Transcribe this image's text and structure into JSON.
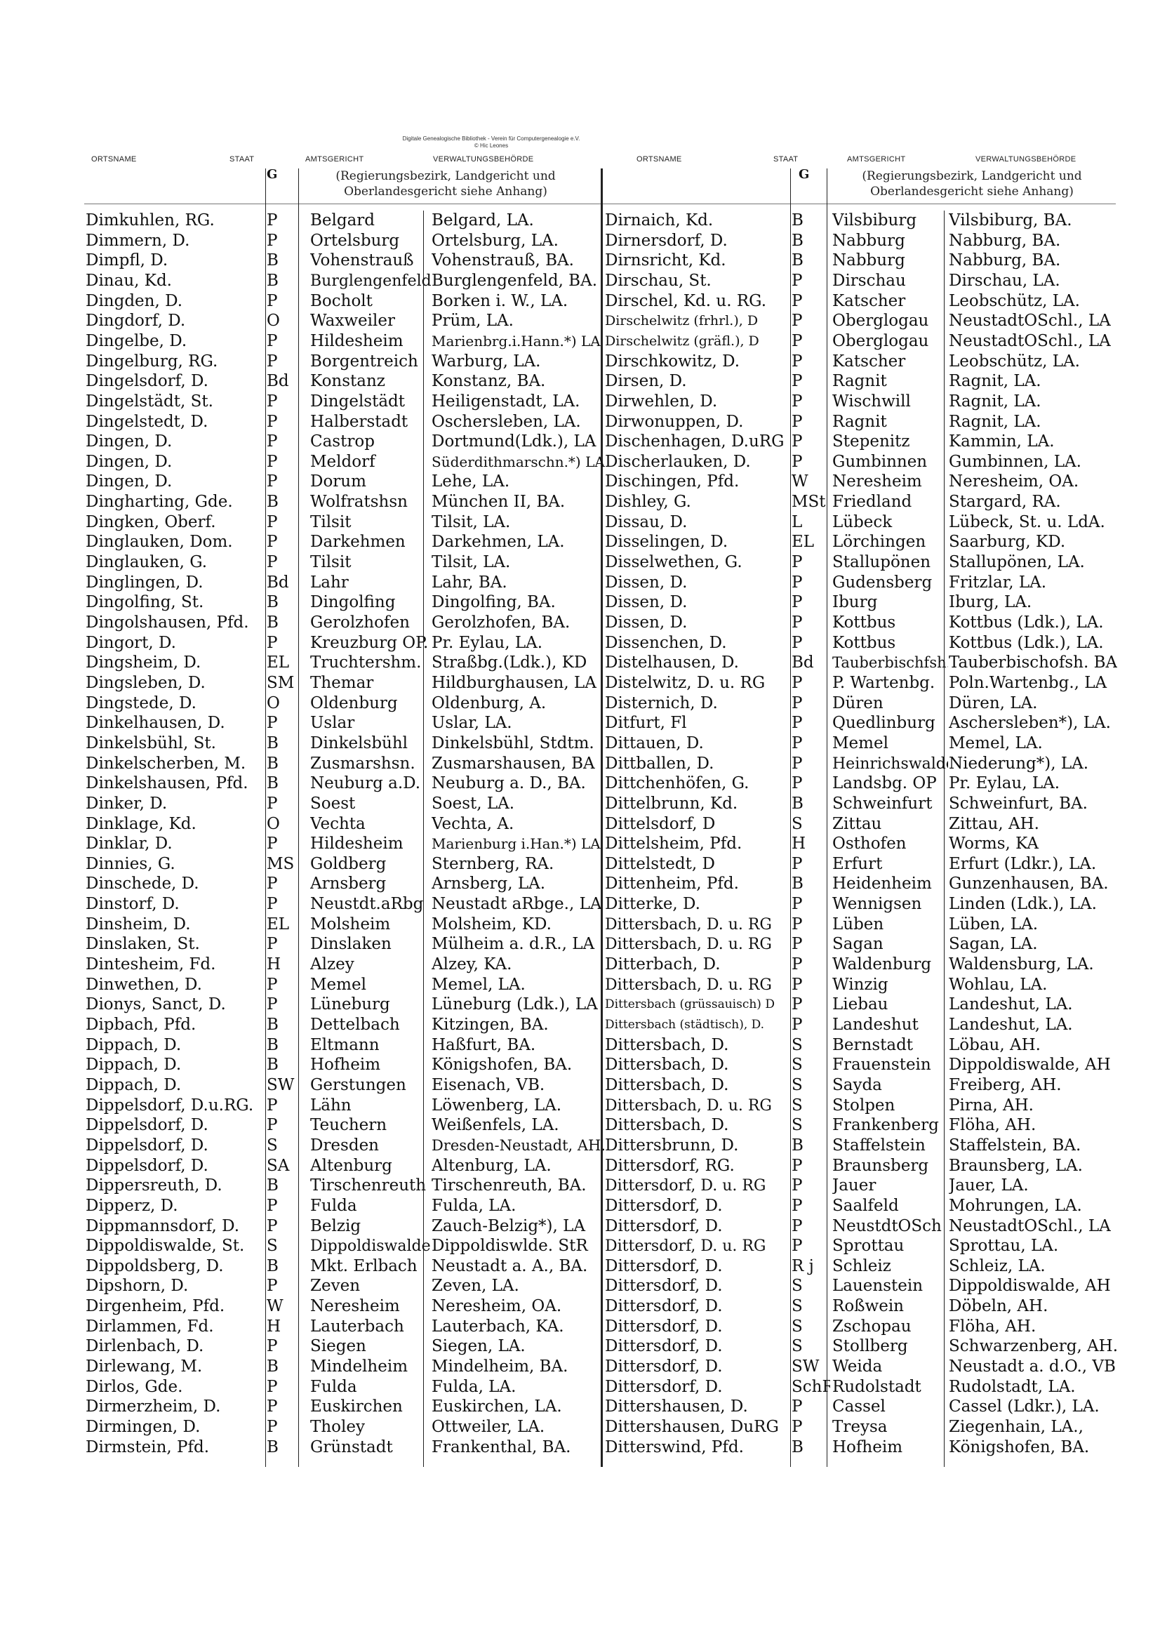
{
  "attribution": {
    "line1": "Digitale Genealogische Bibliothek - Verein für Computergenealogie e.V.",
    "line2": "© Hic Leones"
  },
  "headers": {
    "left": {
      "ortsname": "ORTSNAME",
      "staat": "STAAT",
      "amtsgericht": "AMTSGERICHT",
      "verwaltung": "VERWALTUNGSBEHÖRDE"
    },
    "right": {
      "ortsname": "ORTSNAME",
      "staat": "STAAT",
      "amtsgericht": "AMTSGERICHT",
      "verwaltung": "VERWALTUNGSBEHÖRDE"
    },
    "staat_symbol": "G",
    "note_line1": "(Regierungsbezirk, Landgericht und",
    "note_line2": "Oberlandesgericht siehe Anhang)"
  },
  "left_rows": [
    [
      "Dimkuhlen, RG.",
      "P",
      "Belgard",
      "Belgard, LA."
    ],
    [
      "Dimmern, D.",
      "P",
      "Ortelsburg",
      "Ortelsburg, LA."
    ],
    [
      "Dimpfl, D.",
      "B",
      "Vohenstrauß",
      "Vohenstrauß, BA."
    ],
    [
      "Dinau, Kd.",
      "B",
      "Burglengenfeld",
      "Burglengenfeld, BA."
    ],
    [
      "Dingden, D.",
      "P",
      "Bocholt",
      "Borken i. W., LA."
    ],
    [
      "Dingdorf, D.",
      "O",
      "Waxweiler",
      "Prüm, LA."
    ],
    [
      "Dingelbe, D.",
      "P",
      "Hildesheim",
      "Marienbrg.i.Hann.*) LA"
    ],
    [
      "Dingelburg, RG.",
      "P",
      "Borgentreich",
      "Warburg, LA."
    ],
    [
      "Dingelsdorf, D.",
      "Bd",
      "Konstanz",
      "Konstanz, BA."
    ],
    [
      "Dingelstädt, St.",
      "P",
      "Dingelstädt",
      "Heiligenstadt, LA."
    ],
    [
      "Dingelstedt, D.",
      "P",
      "Halberstadt",
      "Oschersleben, LA."
    ],
    [
      "Dingen, D.",
      "P",
      "Castrop",
      "Dortmund(Ldk.), LA"
    ],
    [
      "Dingen, D.",
      "P",
      "Meldorf",
      "Süderdithmarschn.*) LA"
    ],
    [
      "Dingen, D.",
      "P",
      "Dorum",
      "Lehe, LA."
    ],
    [
      "Dingharting, Gde.",
      "B",
      "Wolfratshsn",
      "München II, BA."
    ],
    [
      "Dingken, Oberf.",
      "P",
      "Tilsit",
      "Tilsit, LA."
    ],
    [
      "Dinglauken, Dom.",
      "P",
      "Darkehmen",
      "Darkehmen, LA."
    ],
    [
      "Dinglauken, G.",
      "P",
      "Tilsit",
      "Tilsit, LA."
    ],
    [
      "Dinglingen, D.",
      "Bd",
      "Lahr",
      "Lahr, BA."
    ],
    [
      "Dingolfing, St.",
      "B",
      "Dingolfing",
      "Dingolfing, BA."
    ],
    [
      "Dingolshausen, Pfd.",
      "B",
      "Gerolzhofen",
      "Gerolzhofen, BA."
    ],
    [
      "Dingort, D.",
      "P",
      "Kreuzburg OP.",
      "Pr. Eylau, LA."
    ],
    [
      "Dingsheim, D.",
      "EL",
      "Truchtershm.",
      "Straßbg.(Ldk.), KD"
    ],
    [
      "Dingsleben, D.",
      "SM",
      "Themar",
      "Hildburghausen, LA"
    ],
    [
      "Dingstede, D.",
      "O",
      "Oldenburg",
      "Oldenburg, A."
    ],
    [
      "Dinkelhausen, D.",
      "P",
      "Uslar",
      "Uslar, LA."
    ],
    [
      "Dinkelsbühl, St.",
      "B",
      "Dinkelsbühl",
      "Dinkelsbühl, Stdtm."
    ],
    [
      "Dinkelscherben, M.",
      "B",
      "Zusmarshsn.",
      "Zusmarshausen, BA"
    ],
    [
      "Dinkelshausen, Pfd.",
      "B",
      "Neuburg a.D.",
      "Neuburg a. D., BA."
    ],
    [
      "Dinker, D.",
      "P",
      "Soest",
      "Soest, LA."
    ],
    [
      "Dinklage, Kd.",
      "O",
      "Vechta",
      "Vechta, A."
    ],
    [
      "Dinklar, D.",
      "P",
      "Hildesheim",
      "Marienburg i.Han.*) LA"
    ],
    [
      "Dinnies, G.",
      "MS",
      "Goldberg",
      "Sternberg, RA."
    ],
    [
      "Dinschede, D.",
      "P",
      "Arnsberg",
      "Arnsberg, LA."
    ],
    [
      "Dinstorf, D.",
      "P",
      "Neustdt.aRbg",
      "Neustadt aRbge., LA"
    ],
    [
      "Dinsheim, D.",
      "EL",
      "Molsheim",
      "Molsheim, KD."
    ],
    [
      "Dinslaken, St.",
      "P",
      "Dinslaken",
      "Mülheim a. d.R., LA"
    ],
    [
      "Dintesheim, Fd.",
      "H",
      "Alzey",
      "Alzey, KA."
    ],
    [
      "Dinwethen, D.",
      "P",
      "Memel",
      "Memel, LA."
    ],
    [
      "Dionys, Sanct, D.",
      "P",
      "Lüneburg",
      "Lüneburg (Ldk.), LA"
    ],
    [
      "Dipbach, Pfd.",
      "B",
      "Dettelbach",
      "Kitzingen, BA."
    ],
    [
      "Dippach, D.",
      "B",
      "Eltmann",
      "Haßfurt, BA."
    ],
    [
      "Dippach, D.",
      "B",
      "Hofheim",
      "Königshofen, BA."
    ],
    [
      "Dippach, D.",
      "SW",
      "Gerstungen",
      "Eisenach, VB."
    ],
    [
      "Dippelsdorf, D.u.RG.",
      "P",
      "Lähn",
      "Löwenberg, LA."
    ],
    [
      "Dippelsdorf, D.",
      "P",
      "Teuchern",
      "Weißenfels, LA."
    ],
    [
      "Dippelsdorf, D.",
      "S",
      "Dresden",
      "Dresden-Neustadt, AH."
    ],
    [
      "Dippelsdorf, D.",
      "SA",
      "Altenburg",
      "Altenburg, LA."
    ],
    [
      "Dippersreuth, D.",
      "B",
      "Tirschenreuth",
      "Tirschenreuth, BA."
    ],
    [
      "Dipperz, D.",
      "P",
      "Fulda",
      "Fulda, LA."
    ],
    [
      "Dippmannsdorf, D.",
      "P",
      "Belzig",
      "Zauch-Belzig*), LA"
    ],
    [
      "Dippoldiswalde, St.",
      "S",
      "Dippoldiswalde",
      "Dippoldiswlde. StR"
    ],
    [
      "Dippoldsberg, D.",
      "B",
      "Mkt. Erlbach",
      "Neustadt a. A., BA."
    ],
    [
      "Dipshorn, D.",
      "P",
      "Zeven",
      "Zeven, LA."
    ],
    [
      "Dirgenheim, Pfd.",
      "W",
      "Neresheim",
      "Neresheim, OA."
    ],
    [
      "Dirlammen, Fd.",
      "H",
      "Lauterbach",
      "Lauterbach, KA."
    ],
    [
      "Dirlenbach, D.",
      "P",
      "Siegen",
      "Siegen, LA."
    ],
    [
      "Dirlewang, M.",
      "B",
      "Mindelheim",
      "Mindelheim, BA."
    ],
    [
      "Dirlos, Gde.",
      "P",
      "Fulda",
      "Fulda, LA."
    ],
    [
      "Dirmerzheim, D.",
      "P",
      "Euskirchen",
      "Euskirchen, LA."
    ],
    [
      "Dirmingen, D.",
      "P",
      "Tholey",
      "Ottweiler, LA."
    ],
    [
      "Dirmstein, Pfd.",
      "B",
      "Grünstadt",
      "Frankenthal, BA."
    ]
  ],
  "right_rows": [
    [
      "Dirnaich, Kd.",
      "B",
      "Vilsbiburg",
      "Vilsbiburg, BA."
    ],
    [
      "Dirnersdorf, D.",
      "B",
      "Nabburg",
      "Nabburg, BA."
    ],
    [
      "Dirnsricht, Kd.",
      "B",
      "Nabburg",
      "Nabburg, BA."
    ],
    [
      "Dirschau, St.",
      "P",
      "Dirschau",
      "Dirschau, LA."
    ],
    [
      "Dirschel, Kd. u. RG.",
      "P",
      "Katscher",
      "Leobschütz, LA."
    ],
    [
      "Dirschelwitz (frhrl.), D",
      "P",
      "Oberglogau",
      "NeustadtOSchl., LA"
    ],
    [
      "Dirschelwitz (gräfl.), D",
      "P",
      "Oberglogau",
      "NeustadtOSchl., LA"
    ],
    [
      "Dirschkowitz, D.",
      "P",
      "Katscher",
      "Leobschütz, LA."
    ],
    [
      "Dirsen, D.",
      "P",
      "Ragnit",
      "Ragnit, LA."
    ],
    [
      "Dirwehlen, D.",
      "P",
      "Wischwill",
      "Ragnit, LA."
    ],
    [
      "Dirwonuppen, D.",
      "P",
      "Ragnit",
      "Ragnit, LA."
    ],
    [
      "Dischenhagen, D.uRG",
      "P",
      "Stepenitz",
      "Kammin, LA."
    ],
    [
      "Discherlauken, D.",
      "P",
      "Gumbinnen",
      "Gumbinnen, LA."
    ],
    [
      "Dischingen, Pfd.",
      "W",
      "Neresheim",
      "Neresheim, OA."
    ],
    [
      "Dishley, G.",
      "MSt",
      "Friedland",
      "Stargard, RA."
    ],
    [
      "Dissau, D.",
      "L",
      "Lübeck",
      "Lübeck, St. u. LdA."
    ],
    [
      "Disselingen, D.",
      "EL",
      "Lörchingen",
      "Saarburg, KD."
    ],
    [
      "Disselwethen, G.",
      "P",
      "Stallupönen",
      "Stallupönen, LA."
    ],
    [
      "Dissen, D.",
      "P",
      "Gudensberg",
      "Fritzlar, LA."
    ],
    [
      "Dissen, D.",
      "P",
      "Iburg",
      "Iburg, LA."
    ],
    [
      "Dissen, D.",
      "P",
      "Kottbus",
      "Kottbus (Ldk.), LA."
    ],
    [
      "Dissenchen, D.",
      "P",
      "Kottbus",
      "Kottbus (Ldk.), LA."
    ],
    [
      "Distelhausen, D.",
      "Bd",
      "Tauberbischfsh.",
      "Tauberbischofsh. BA"
    ],
    [
      "Distelwitz, D. u. RG",
      "P",
      "P. Wartenbg.",
      "Poln.Wartenbg., LA"
    ],
    [
      "Disternich, D.",
      "P",
      "Düren",
      "Düren, LA."
    ],
    [
      "Ditfurt, Fl",
      "P",
      "Quedlinburg",
      "Aschersleben*), LA."
    ],
    [
      "Dittauen, D.",
      "P",
      "Memel",
      "Memel, LA."
    ],
    [
      "Dittballen, D.",
      "P",
      "Heinrichswalde",
      "Niederung*), LA."
    ],
    [
      "Dittchenhöfen, G.",
      "P",
      "Landsbg. OP",
      "Pr. Eylau, LA."
    ],
    [
      "Dittelbrunn, Kd.",
      "B",
      "Schweinfurt",
      "Schweinfurt, BA."
    ],
    [
      "Dittelsdorf, D",
      "S",
      "Zittau",
      "Zittau, AH."
    ],
    [
      "Dittelsheim, Pfd.",
      "H",
      "Osthofen",
      "Worms, KA"
    ],
    [
      "Dittelstedt, D",
      "P",
      "Erfurt",
      "Erfurt (Ldkr.), LA."
    ],
    [
      "Dittenheim, Pfd.",
      "B",
      "Heidenheim",
      "Gunzenhausen, BA."
    ],
    [
      "Ditterke, D.",
      "P",
      "Wennigsen",
      "Linden (Ldk.), LA."
    ],
    [
      "Dittersbach, D. u. RG",
      "P",
      "Lüben",
      "Lüben, LA."
    ],
    [
      "Dittersbach, D. u. RG",
      "P",
      "Sagan",
      "Sagan, LA."
    ],
    [
      "Ditterbach, D.",
      "P",
      "Waldenburg",
      "Waldensburg, LA."
    ],
    [
      "Dittersbach, D. u. RG",
      "P",
      "Winzig",
      "Wohlau, LA."
    ],
    [
      "Dittersbach (grüssauisch) D",
      "P",
      "Liebau",
      "Landeshut, LA."
    ],
    [
      "Dittersbach (städtisch), D.",
      "P",
      "Landeshut",
      "Landeshut, LA."
    ],
    [
      "Dittersbach, D.",
      "S",
      "Bernstadt",
      "Löbau, AH."
    ],
    [
      "Dittersbach, D.",
      "S",
      "Frauenstein",
      "Dippoldiswalde, AH"
    ],
    [
      "Dittersbach, D.",
      "S",
      "Sayda",
      "Freiberg, AH."
    ],
    [
      "Dittersbach, D. u. RG",
      "S",
      "Stolpen",
      "Pirna, AH."
    ],
    [
      "Dittersbach, D.",
      "S",
      "Frankenberg",
      "Flöha, AH."
    ],
    [
      "Dittersbrunn, D.",
      "B",
      "Staffelstein",
      "Staffelstein, BA."
    ],
    [
      "Dittersdorf, RG.",
      "P",
      "Braunsberg",
      "Braunsberg, LA."
    ],
    [
      "Dittersdorf, D. u. RG",
      "P",
      "Jauer",
      "Jauer, LA."
    ],
    [
      "Dittersdorf, D.",
      "P",
      "Saalfeld",
      "Mohrungen, LA."
    ],
    [
      "Dittersdorf, D.",
      "P",
      "NeustdtOSch",
      "NeustadtOSchl., LA"
    ],
    [
      "Dittersdorf, D. u. RG",
      "P",
      "Sprottau",
      "Sprottau, LA."
    ],
    [
      "Dittersdorf, D.",
      "R j",
      "Schleiz",
      "Schleiz, LA."
    ],
    [
      "Dittersdorf, D.",
      "S",
      "Lauenstein",
      "Dippoldiswalde, AH"
    ],
    [
      "Dittersdorf, D.",
      "S",
      "Roßwein",
      "Döbeln, AH."
    ],
    [
      "Dittersdorf, D.",
      "S",
      "Zschopau",
      "Flöha, AH."
    ],
    [
      "Dittersdorf, D.",
      "S",
      "Stollberg",
      "Schwarzenberg, AH."
    ],
    [
      "Dittersdorf, D.",
      "SW",
      "Weida",
      "Neustadt a. d.O., VB"
    ],
    [
      "Dittersdorf, D.",
      "SchR",
      "Rudolstadt",
      "Rudolstadt, LA."
    ],
    [
      "Dittershausen, D.",
      "P",
      "Cassel",
      "Cassel (Ldkr.), LA."
    ],
    [
      "Dittershausen, DuRG",
      "P",
      "Treysa",
      "Ziegenhain, LA.,"
    ],
    [
      "Ditterswind, Pfd.",
      "B",
      "Hofheim",
      "Königshofen, BA."
    ]
  ]
}
